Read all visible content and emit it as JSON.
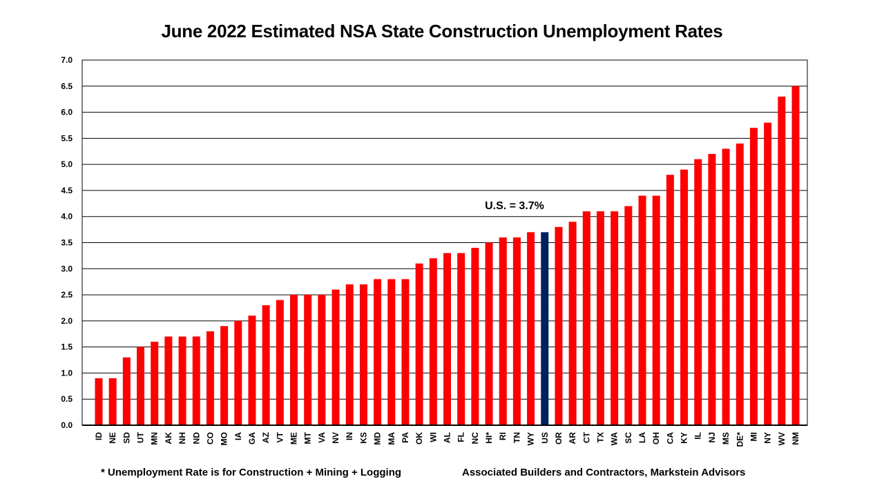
{
  "chart_data": {
    "type": "bar",
    "title": "June 2022 Estimated NSA State Construction Unemployment Rates",
    "xlabel": "",
    "ylabel": "",
    "ylim": [
      0,
      7.0
    ],
    "yticks": [
      "0.0",
      "0.5",
      "1.0",
      "1.5",
      "2.0",
      "2.5",
      "3.0",
      "3.5",
      "4.0",
      "4.5",
      "5.0",
      "5.5",
      "6.0",
      "6.5",
      "7.0"
    ],
    "grid": true,
    "categories": [
      "ID",
      "NE",
      "SD",
      "UT",
      "MN",
      "AK",
      "NH",
      "ND",
      "CO",
      "MO",
      "IA",
      "GA",
      "AZ",
      "VT",
      "ME",
      "MT",
      "VA",
      "NV",
      "IN",
      "KS",
      "MD",
      "MA",
      "PA",
      "OK",
      "WI",
      "AL",
      "FL",
      "NC",
      "HI*",
      "RI",
      "TN",
      "WY",
      "US",
      "OR",
      "AR",
      "CT",
      "TX",
      "WA",
      "SC",
      "LA",
      "OH",
      "CA",
      "KY",
      "IL",
      "NJ",
      "MS",
      "DE*",
      "MI",
      "NY",
      "WV",
      "NM"
    ],
    "values": [
      0.9,
      0.9,
      1.3,
      1.5,
      1.6,
      1.7,
      1.7,
      1.7,
      1.8,
      1.9,
      2.0,
      2.1,
      2.3,
      2.4,
      2.5,
      2.5,
      2.5,
      2.6,
      2.7,
      2.7,
      2.8,
      2.8,
      2.8,
      3.1,
      3.2,
      3.3,
      3.3,
      3.4,
      3.5,
      3.6,
      3.6,
      3.7,
      3.7,
      3.8,
      3.9,
      4.1,
      4.1,
      4.1,
      4.2,
      4.4,
      4.4,
      4.8,
      4.9,
      5.1,
      5.2,
      5.3,
      5.4,
      5.7,
      5.8,
      6.3,
      6.5
    ],
    "highlight_category": "US",
    "annotation": "U.S. = 3.7%",
    "colors": {
      "bar": "#ff0000",
      "highlight": "#002060"
    }
  },
  "footnotes": {
    "left": "* Unemployment Rate is for Construction + Mining + Logging",
    "right": "Associated Builders and Contractors, Markstein Advisors"
  }
}
